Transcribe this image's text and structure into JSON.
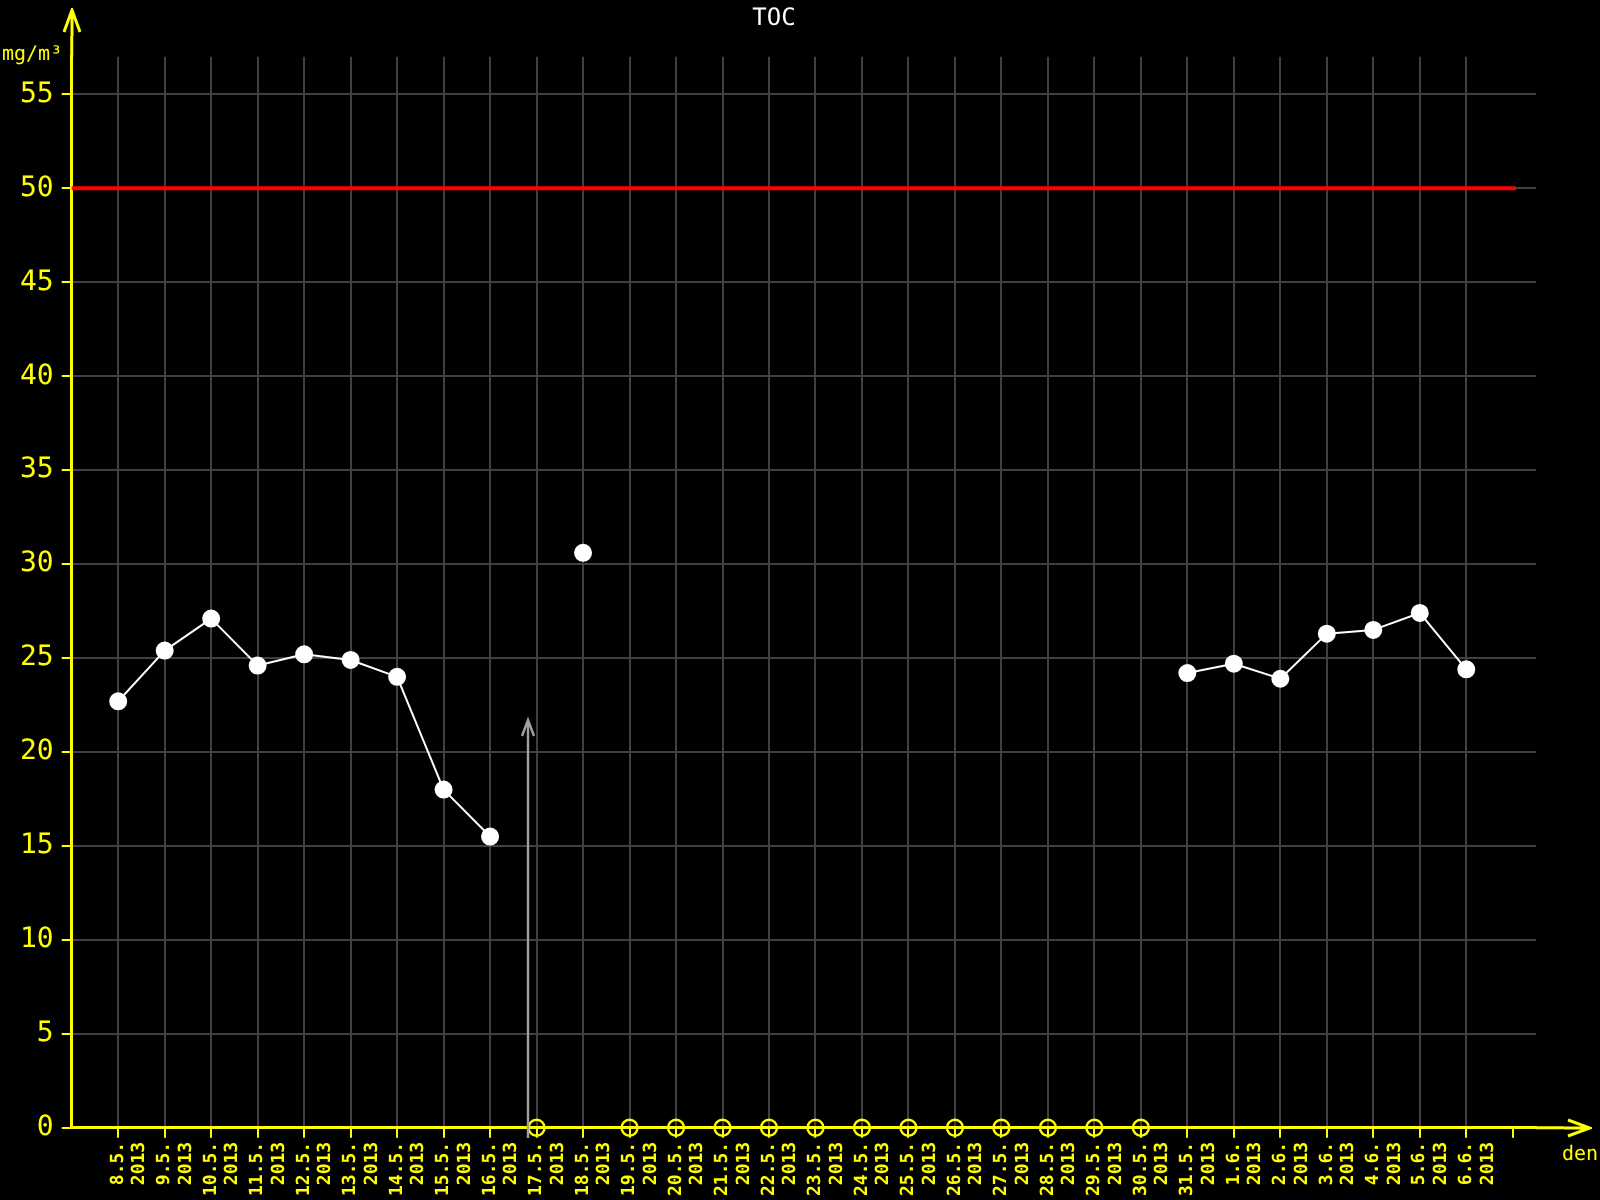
{
  "chart_data": {
    "type": "line",
    "title": "TOC",
    "xlabel": "den",
    "ylabel": "mg/m³",
    "categories": [
      "8.5. 2013",
      "9.5. 2013",
      "10.5. 2013",
      "11.5. 2013",
      "12.5. 2013",
      "13.5. 2013",
      "14.5. 2013",
      "15.5. 2013",
      "16.5. 2013",
      "17.5. 2013",
      "18.5. 2013",
      "19.5. 2013",
      "20.5. 2013",
      "21.5. 2013",
      "22.5. 2013",
      "23.5. 2013",
      "24.5. 2013",
      "25.5. 2013",
      "26.5. 2013",
      "27.5. 2013",
      "28.5. 2013",
      "29.5. 2013",
      "30.5. 2013",
      "31.5. 2013",
      "1.6. 2013",
      "2.6. 2013",
      "3.6. 2013",
      "4.6. 2013",
      "5.6. 2013",
      "6.6. 2013"
    ],
    "series": [
      {
        "type": "line",
        "color": "#ffffff",
        "marker": "circle",
        "values": [
          22.7,
          25.4,
          27.1,
          24.6,
          25.2,
          24.9,
          24.0,
          18.0,
          15.5,
          null,
          30.6,
          null,
          null,
          null,
          null,
          null,
          null,
          null,
          null,
          null,
          null,
          null,
          null,
          24.2,
          24.7,
          23.9,
          26.3,
          26.5,
          27.4,
          24.4
        ]
      },
      {
        "type": "scatter",
        "color": "#ffff00",
        "marker": "circle",
        "values": [
          null,
          null,
          null,
          null,
          null,
          null,
          null,
          null,
          null,
          0,
          null,
          0,
          0,
          0,
          0,
          0,
          0,
          0,
          0,
          0,
          0,
          0,
          0,
          null,
          null,
          null,
          null,
          null,
          null,
          null
        ]
      }
    ],
    "ylim": [
      0,
      57
    ],
    "yticks": [
      0,
      5,
      10,
      15,
      20,
      25,
      30,
      35,
      40,
      45,
      50,
      55
    ],
    "ref_lines": [
      {
        "axis": "y",
        "value": 50,
        "color": "#ff0000"
      }
    ],
    "grid": true,
    "legend": false
  }
}
